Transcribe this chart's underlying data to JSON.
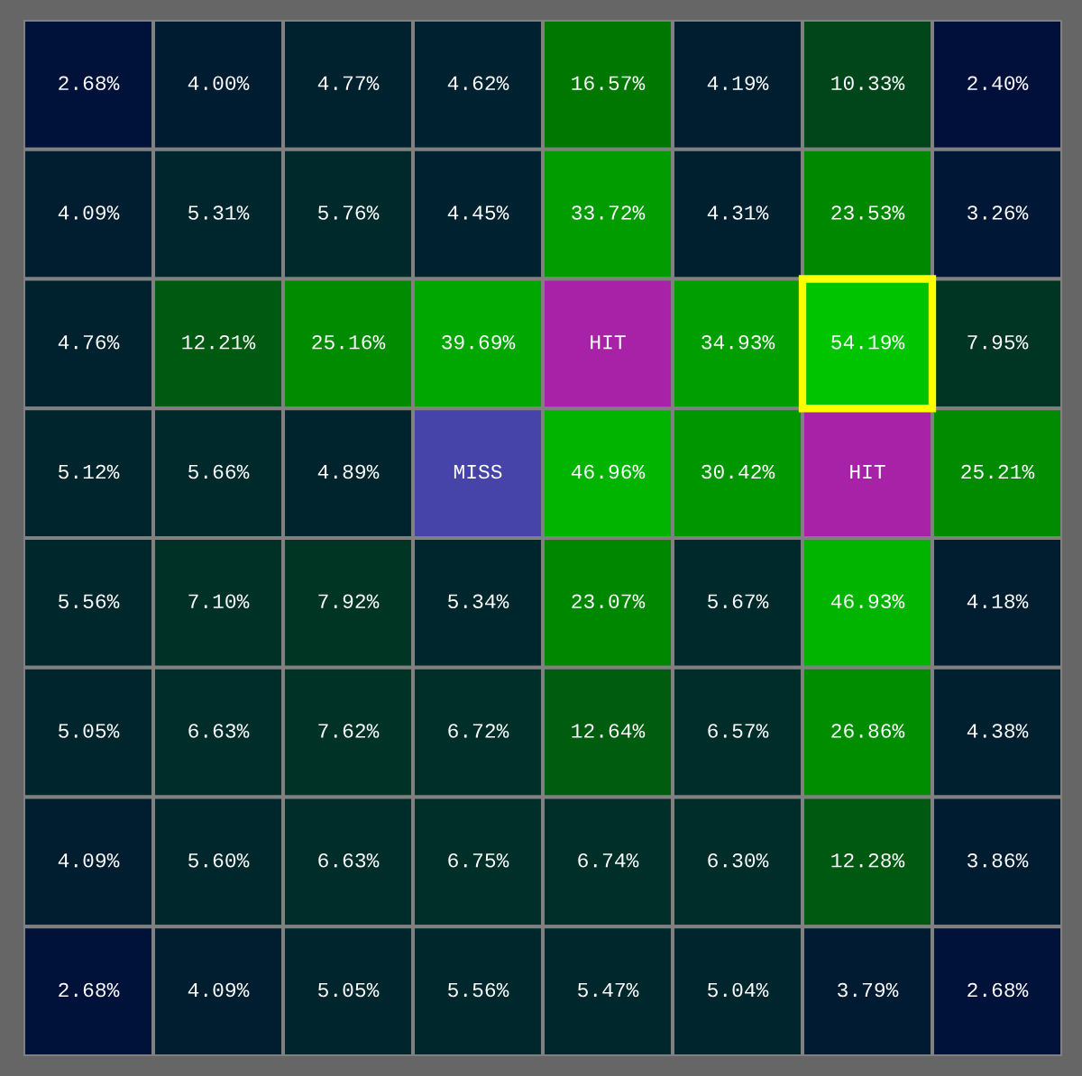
{
  "chart_data": {
    "type": "heatmap",
    "categories": [
      null,
      null,
      null,
      null,
      null,
      null,
      null,
      null
    ],
    "y_categories": [
      null,
      null,
      null,
      null,
      null,
      null,
      null,
      null
    ],
    "cells": [
      [
        2.68,
        4.0,
        4.77,
        4.62,
        16.57,
        4.19,
        10.33,
        2.4
      ],
      [
        4.09,
        5.31,
        5.76,
        4.45,
        33.72,
        4.31,
        23.53,
        3.26
      ],
      [
        4.76,
        12.21,
        25.16,
        39.69,
        null,
        34.93,
        54.19,
        7.95
      ],
      [
        5.12,
        5.66,
        4.89,
        null,
        46.96,
        30.42,
        null,
        25.21
      ],
      [
        5.56,
        7.1,
        7.92,
        5.34,
        23.07,
        5.67,
        46.93,
        4.18
      ],
      [
        5.05,
        6.63,
        7.62,
        6.72,
        12.64,
        6.57,
        26.86,
        4.38
      ],
      [
        4.09,
        5.6,
        6.63,
        6.75,
        6.74,
        6.3,
        12.28,
        3.86
      ],
      [
        2.68,
        4.09,
        5.05,
        5.56,
        5.47,
        5.04,
        3.79,
        2.68
      ]
    ],
    "cell_labels": [
      [
        "2.68%",
        "4.00%",
        "4.77%",
        "4.62%",
        "16.57%",
        "4.19%",
        "10.33%",
        "2.40%"
      ],
      [
        "4.09%",
        "5.31%",
        "5.76%",
        "4.45%",
        "33.72%",
        "4.31%",
        "23.53%",
        "3.26%"
      ],
      [
        "4.76%",
        "12.21%",
        "25.16%",
        "39.69%",
        "HIT",
        "34.93%",
        "54.19%",
        "7.95%"
      ],
      [
        "5.12%",
        "5.66%",
        "4.89%",
        "MISS",
        "46.96%",
        "30.42%",
        "HIT",
        "25.21%"
      ],
      [
        "5.56%",
        "7.10%",
        "7.92%",
        "5.34%",
        "23.07%",
        "5.67%",
        "46.93%",
        "4.18%"
      ],
      [
        "5.05%",
        "6.63%",
        "7.62%",
        "6.72%",
        "12.64%",
        "6.57%",
        "26.86%",
        "4.38%"
      ],
      [
        "4.09%",
        "5.60%",
        "6.63%",
        "6.75%",
        "6.74%",
        "6.30%",
        "12.28%",
        "3.86%"
      ],
      [
        "2.68%",
        "4.09%",
        "5.05%",
        "5.56%",
        "5.47%",
        "5.04%",
        "3.79%",
        "2.68%"
      ]
    ],
    "colors": [
      [
        null,
        null,
        null,
        null,
        null,
        null,
        null,
        null
      ],
      [
        null,
        null,
        null,
        null,
        null,
        null,
        null,
        null
      ],
      [
        null,
        null,
        null,
        null,
        "#a822a8",
        null,
        null,
        null
      ],
      [
        null,
        null,
        null,
        "#4644a8",
        null,
        null,
        "#a822a8",
        null
      ],
      [
        null,
        null,
        null,
        null,
        null,
        null,
        null,
        null
      ],
      [
        null,
        null,
        null,
        null,
        null,
        null,
        null,
        null
      ],
      [
        null,
        null,
        null,
        null,
        null,
        null,
        null,
        null
      ],
      [
        null,
        null,
        null,
        null,
        null,
        null,
        null,
        null
      ]
    ],
    "tick_labels": false
  }
}
